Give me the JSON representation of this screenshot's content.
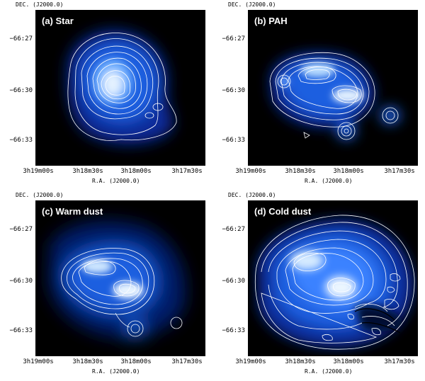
{
  "axis": {
    "dec_label": "DEC. (J2000.0)",
    "ra_label": "R.A. (J2000.0)",
    "dec_ticks": [
      "−66:27",
      "−66:30",
      "−66:33"
    ],
    "ra_ticks": [
      "3h19m00s",
      "3h18m30s",
      "3h18m00s",
      "3h17m30s"
    ]
  },
  "panels": [
    {
      "id": "star",
      "label": "(a) Star"
    },
    {
      "id": "pah",
      "label": "(b) PAH"
    },
    {
      "id": "warm",
      "label": "(c) Warm dust"
    },
    {
      "id": "cold",
      "label": "(d) Cold dust"
    }
  ],
  "colors": {
    "background": "#000000",
    "emission": "#1e73ff",
    "peak": "#e8f4ff",
    "contour": "#ffffff"
  }
}
